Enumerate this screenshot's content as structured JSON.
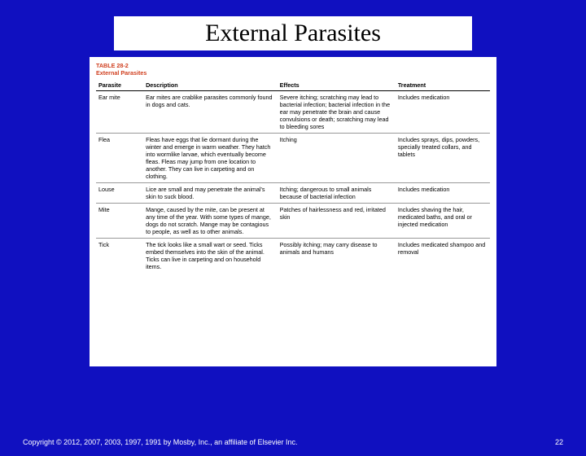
{
  "slide": {
    "title": "External Parasites",
    "background_color": "#1010c0",
    "title_font": "Times New Roman",
    "title_fontsize": 30,
    "title_color": "#000000"
  },
  "table_panel": {
    "background_color": "#ffffff",
    "header_label": "TABLE 28-2",
    "header_title": "External Parasites",
    "header_color": "#d04020",
    "body_fontsize": 7.2,
    "columns": [
      "Parasite",
      "Description",
      "Effects",
      "Treatment"
    ],
    "column_widths_pct": [
      12,
      34,
      30,
      24
    ],
    "rows": [
      {
        "parasite": "Ear mite",
        "description": "Ear mites are crablike parasites commonly found in dogs and cats.",
        "effects": "Severe itching; scratching may lead to bacterial infection; bacterial infection in the ear may penetrate the brain and cause convulsions or death; scratching may lead to bleeding sores",
        "treatment": "Includes medication"
      },
      {
        "parasite": "Flea",
        "description": "Fleas have eggs that lie dormant during the winter and emerge in warm weather. They hatch into wormlike larvae, which eventually become fleas. Fleas may jump from one location to another. They can live in carpeting and on clothing.",
        "effects": "Itching",
        "treatment": "Includes sprays, dips, powders, specially treated collars, and tablets"
      },
      {
        "parasite": "Louse",
        "description": "Lice are small and may penetrate the animal's skin to suck blood.",
        "effects": "Itching; dangerous to small animals because of bacterial infection",
        "treatment": "Includes medication"
      },
      {
        "parasite": "Mite",
        "description": "Mange, caused by the mite, can be present at any time of the year. With some types of mange, dogs do not scratch. Mange may be contagious to people, as well as to other animals.",
        "effects": "Patches of hairlessness and red, irritated skin",
        "treatment": "Includes shaving the hair, medicated baths, and oral or injected medication"
      },
      {
        "parasite": "Tick",
        "description": "The tick looks like a small wart or seed. Ticks embed themselves into the skin of the animal. Ticks can live in carpeting and on household items.",
        "effects": "Possibly itching; may carry disease to animals and humans",
        "treatment": "Includes medicated shampoo and removal"
      }
    ]
  },
  "footer": {
    "copyright": "Copyright © 2012, 2007, 2003, 1997, 1991 by Mosby, Inc., an affiliate of Elsevier Inc.",
    "page_number": "22",
    "color": "#ffffff",
    "fontsize": 9
  }
}
